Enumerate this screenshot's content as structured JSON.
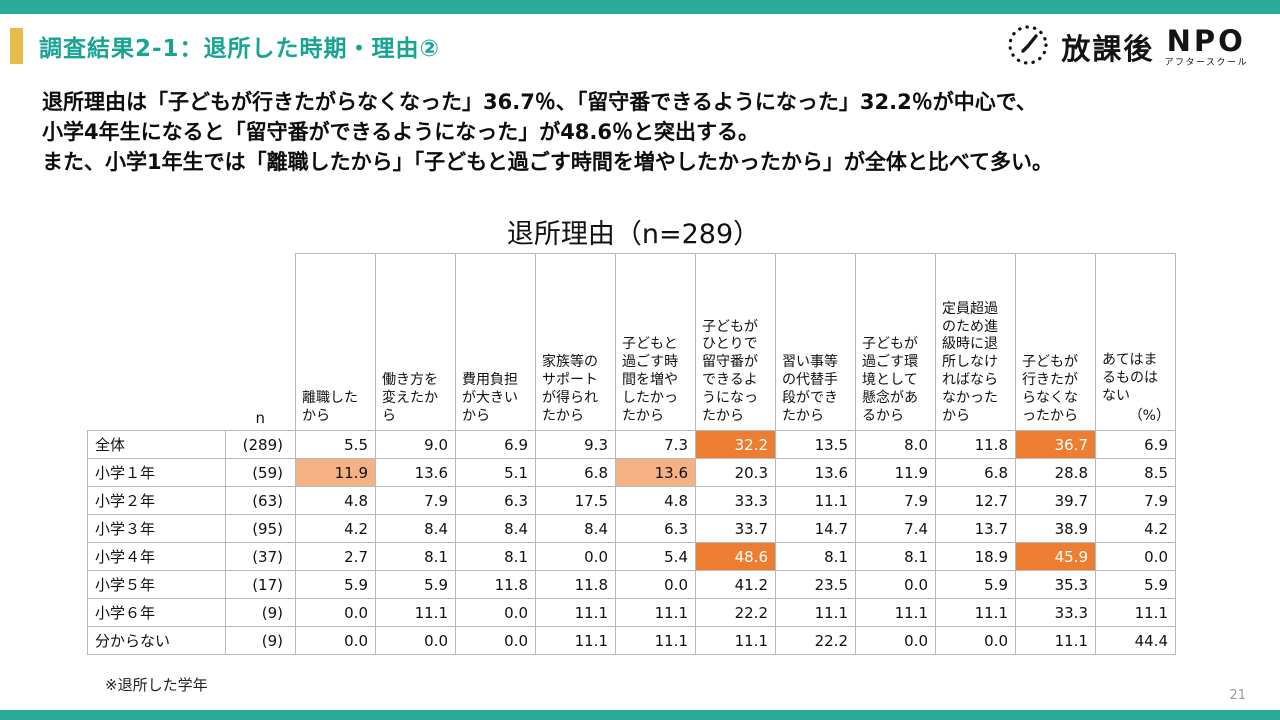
{
  "page": {
    "title": "調査結果2-1：退所した時期・理由②",
    "page_number": "21",
    "colors": {
      "teal_bar": "#2bab97",
      "title_teal": "#17a492",
      "accent_gold": "#e6bd4c",
      "highlight_dark": "#ed7d31",
      "highlight_light": "#f4b183",
      "table_border": "#b9b9b9"
    }
  },
  "logo": {
    "icon": "clock-icon",
    "text_main": "放課後",
    "text_npo": "NPO",
    "text_sub": "アフタースクール"
  },
  "lead": {
    "line1": "退所理由は「子どもが行きたがらなくなった」36.7％、「留守番できるようになった」32.2％が中心で、",
    "line2": "小学4年生になると「留守番ができるようになった」が48.6％と突出する。",
    "line3": "また、小学1年生では「離職したから」「子どもと過ごす時間を増やしたかったから」が全体と比べて多い。"
  },
  "table": {
    "title": "退所理由（n=289）",
    "n_header": "n",
    "percent_label": "（%）",
    "columns": [
      "離職したから",
      "働き方を変えたから",
      "費用負担が大きいから",
      "家族等のサポートが得られたから",
      "子どもと過ごす時間を増やしたかったから",
      "子どもがひとりで留守番ができるようになったから",
      "習い事等の代替手段ができたから",
      "子どもが過ごす環境として懸念があるから",
      "定員超過のため進級時に退所しなければならなかったから",
      "子どもが行きたがらなくなったから",
      "あてはまるものはない"
    ],
    "rows": [
      {
        "label": "全体",
        "n": "(289)",
        "values": [
          "5.5",
          "9.0",
          "6.9",
          "9.3",
          "7.3",
          "32.2",
          "13.5",
          "8.0",
          "11.8",
          "36.7",
          "6.9"
        ]
      },
      {
        "label": "小学１年",
        "n": "(59)",
        "values": [
          "11.9",
          "13.6",
          "5.1",
          "6.8",
          "13.6",
          "20.3",
          "13.6",
          "11.9",
          "6.8",
          "28.8",
          "8.5"
        ]
      },
      {
        "label": "小学２年",
        "n": "(63)",
        "values": [
          "4.8",
          "7.9",
          "6.3",
          "17.5",
          "4.8",
          "33.3",
          "11.1",
          "7.9",
          "12.7",
          "39.7",
          "7.9"
        ]
      },
      {
        "label": "小学３年",
        "n": "(95)",
        "values": [
          "4.2",
          "8.4",
          "8.4",
          "8.4",
          "6.3",
          "33.7",
          "14.7",
          "7.4",
          "13.7",
          "38.9",
          "4.2"
        ]
      },
      {
        "label": "小学４年",
        "n": "(37)",
        "values": [
          "2.7",
          "8.1",
          "8.1",
          "0.0",
          "5.4",
          "48.6",
          "8.1",
          "8.1",
          "18.9",
          "45.9",
          "0.0"
        ]
      },
      {
        "label": "小学５年",
        "n": "(17)",
        "values": [
          "5.9",
          "5.9",
          "11.8",
          "11.8",
          "0.0",
          "41.2",
          "23.5",
          "0.0",
          "5.9",
          "35.3",
          "5.9"
        ]
      },
      {
        "label": "小学６年",
        "n": "(9)",
        "values": [
          "0.0",
          "11.1",
          "0.0",
          "11.1",
          "11.1",
          "22.2",
          "11.1",
          "11.1",
          "11.1",
          "33.3",
          "11.1"
        ]
      },
      {
        "label": "分からない",
        "n": "(9)",
        "values": [
          "0.0",
          "0.0",
          "0.0",
          "11.1",
          "11.1",
          "11.1",
          "22.2",
          "0.0",
          "0.0",
          "11.1",
          "44.4"
        ]
      }
    ],
    "highlights": {
      "dark": [
        [
          0,
          5
        ],
        [
          0,
          9
        ],
        [
          4,
          5
        ],
        [
          4,
          9
        ]
      ],
      "light": [
        [
          1,
          0
        ],
        [
          1,
          4
        ]
      ]
    }
  },
  "footnote": "※退所した学年"
}
